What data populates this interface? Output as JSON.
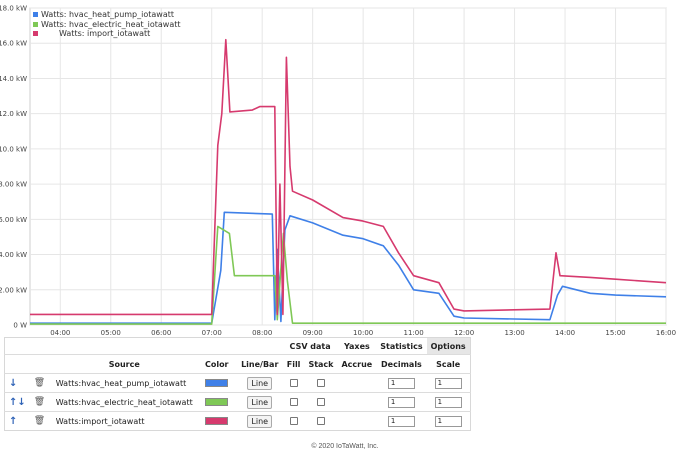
{
  "chart_data": {
    "type": "line",
    "x_ticks": [
      "04:00",
      "05:00",
      "06:00",
      "07:00",
      "08:00",
      "09:00",
      "10:00",
      "11:00",
      "12:00",
      "13:00",
      "14:00",
      "15:00",
      "16:00"
    ],
    "y_ticks": [
      "0 W",
      "2.00 kW",
      "4.00 kW",
      "6.00 kW",
      "8.00 kW",
      "10.0 kW",
      "12.0 kW",
      "14.0 kW",
      "16.0 kW",
      "18.0 kW"
    ],
    "ylim": [
      0,
      18
    ],
    "xlim": [
      3.4,
      16.0
    ],
    "grid": true,
    "legend_position": "top-left",
    "series": [
      {
        "name": "Watts: hvac_heat_pump_iotawatt",
        "color": "#3f80e8",
        "points": [
          [
            3.4,
            0.1
          ],
          [
            7.0,
            0.1
          ],
          [
            7.18,
            3.1
          ],
          [
            7.25,
            6.4
          ],
          [
            8.2,
            6.3
          ],
          [
            8.25,
            0.3
          ],
          [
            8.3,
            4.3
          ],
          [
            8.37,
            0.2
          ],
          [
            8.45,
            5.4
          ],
          [
            8.55,
            6.2
          ],
          [
            9.0,
            5.8
          ],
          [
            9.6,
            5.1
          ],
          [
            10.0,
            4.9
          ],
          [
            10.4,
            4.5
          ],
          [
            10.7,
            3.4
          ],
          [
            11.0,
            2.0
          ],
          [
            11.5,
            1.8
          ],
          [
            11.8,
            0.5
          ],
          [
            12.0,
            0.4
          ],
          [
            13.7,
            0.3
          ],
          [
            13.85,
            1.7
          ],
          [
            13.95,
            2.2
          ],
          [
            14.5,
            1.8
          ],
          [
            15.0,
            1.7
          ],
          [
            16.0,
            1.6
          ]
        ]
      },
      {
        "name": "Watts: hvac_electric_heat_iotawatt",
        "color": "#7fc856",
        "points": [
          [
            3.4,
            0.05
          ],
          [
            7.0,
            0.05
          ],
          [
            7.12,
            5.6
          ],
          [
            7.35,
            5.2
          ],
          [
            7.45,
            2.8
          ],
          [
            8.25,
            2.8
          ],
          [
            8.3,
            0.3
          ],
          [
            8.42,
            5.2
          ],
          [
            8.5,
            2.5
          ],
          [
            8.6,
            0.1
          ],
          [
            16.0,
            0.1
          ]
        ]
      },
      {
        "name": "Watts: import_iotawatt",
        "color": "#d63a6e",
        "points": [
          [
            3.4,
            0.6
          ],
          [
            7.0,
            0.6
          ],
          [
            7.12,
            10.2
          ],
          [
            7.2,
            12.0
          ],
          [
            7.28,
            16.2
          ],
          [
            7.36,
            12.1
          ],
          [
            7.8,
            12.2
          ],
          [
            7.95,
            12.4
          ],
          [
            8.25,
            12.4
          ],
          [
            8.3,
            0.6
          ],
          [
            8.35,
            8.0
          ],
          [
            8.41,
            0.6
          ],
          [
            8.48,
            15.2
          ],
          [
            8.55,
            9.0
          ],
          [
            8.6,
            7.6
          ],
          [
            9.0,
            7.1
          ],
          [
            9.6,
            6.1
          ],
          [
            10.0,
            5.9
          ],
          [
            10.4,
            5.6
          ],
          [
            10.7,
            4.1
          ],
          [
            11.0,
            2.8
          ],
          [
            11.5,
            2.4
          ],
          [
            11.8,
            0.9
          ],
          [
            12.0,
            0.8
          ],
          [
            13.7,
            0.9
          ],
          [
            13.82,
            4.1
          ],
          [
            13.9,
            2.8
          ],
          [
            14.5,
            2.7
          ],
          [
            15.0,
            2.6
          ],
          [
            16.0,
            2.4
          ]
        ]
      }
    ]
  },
  "table": {
    "headers": {
      "source": "Source",
      "color": "Color",
      "line_bar": "Line/Bar",
      "csv": "CSV data",
      "fill": "Fill",
      "stack": "Stack",
      "yaxes": "Yaxes",
      "accrue": "Accrue",
      "statistics": "Statistics",
      "decimals": "Decimals",
      "options": "Options",
      "scale": "Scale"
    },
    "rows": [
      {
        "arrow": "↓",
        "source": "Watts:hvac_heat_pump_iotawatt",
        "color": "#3f80e8",
        "mode": "Line",
        "decimals": "1",
        "scale": "1"
      },
      {
        "arrow": "↑↓",
        "source": "Watts:hvac_electric_heat_iotawatt",
        "color": "#7fc856",
        "mode": "Line",
        "decimals": "1",
        "scale": "1"
      },
      {
        "arrow": "↑",
        "source": "Watts:import_iotawatt",
        "color": "#d63a6e",
        "mode": "Line",
        "decimals": "1",
        "scale": "1"
      }
    ]
  },
  "footer": "© 2020 IoTaWatt, Inc."
}
